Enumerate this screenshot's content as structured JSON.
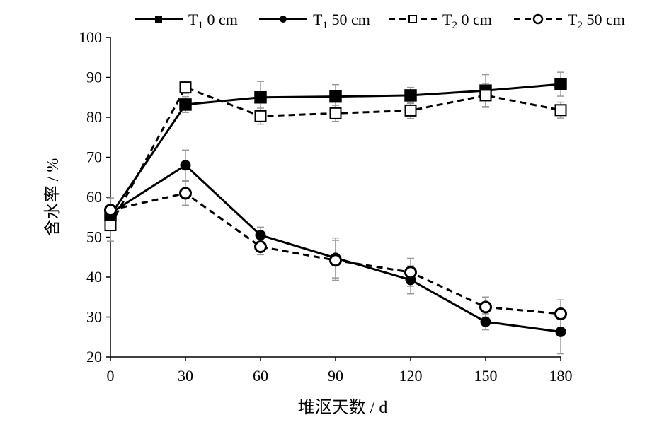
{
  "chart_data": {
    "type": "line",
    "xlabel": "堆沤天数 / d",
    "ylabel": "含水率 / %",
    "x": [
      0,
      30,
      60,
      90,
      120,
      150,
      180
    ],
    "xlim": [
      0,
      180
    ],
    "ylim": [
      20,
      100
    ],
    "x_ticks": [
      "0",
      "30",
      "60",
      "90",
      "120",
      "150",
      "180"
    ],
    "y_ticks": [
      "20",
      "30",
      "40",
      "50",
      "60",
      "70",
      "80",
      "90",
      "100"
    ],
    "grid": false,
    "legend_position": "top",
    "series": [
      {
        "name": "T1 0 cm",
        "name_main": "T",
        "name_sub": "1",
        "name_rest": " 0 cm",
        "line_style": "solid",
        "marker": "filled-square",
        "values": [
          55.5,
          83.2,
          85.0,
          85.2,
          85.5,
          86.7,
          88.3
        ],
        "errors": [
          1.5,
          2.0,
          4.0,
          3.0,
          2.0,
          4.0,
          3.0
        ]
      },
      {
        "name": "T1 50 cm",
        "name_main": "T",
        "name_sub": "1",
        "name_rest": " 50 cm",
        "line_style": "solid",
        "marker": "filled-circle",
        "values": [
          56.0,
          68.0,
          50.5,
          44.8,
          39.3,
          28.8,
          26.3
        ],
        "errors": [
          1.0,
          3.8,
          2.0,
          5.0,
          3.5,
          2.0,
          5.5
        ]
      },
      {
        "name": "T2 0 cm",
        "name_main": "T",
        "name_sub": "2",
        "name_rest": " 0 cm",
        "line_style": "dashed",
        "marker": "open-square",
        "values": [
          53.0,
          87.5,
          80.3,
          81.0,
          81.7,
          85.5,
          81.8
        ],
        "errors": [
          4.0,
          1.5,
          2.0,
          2.0,
          2.0,
          3.0,
          2.0
        ]
      },
      {
        "name": "T2 50 cm",
        "name_main": "T",
        "name_sub": "2",
        "name_rest": " 50 cm",
        "line_style": "dashed",
        "marker": "open-circle",
        "values": [
          56.8,
          61.0,
          47.6,
          44.2,
          41.2,
          32.5,
          30.8
        ],
        "errors": [
          3.0,
          3.0,
          2.0,
          5.0,
          3.5,
          2.5,
          3.5
        ]
      }
    ]
  }
}
